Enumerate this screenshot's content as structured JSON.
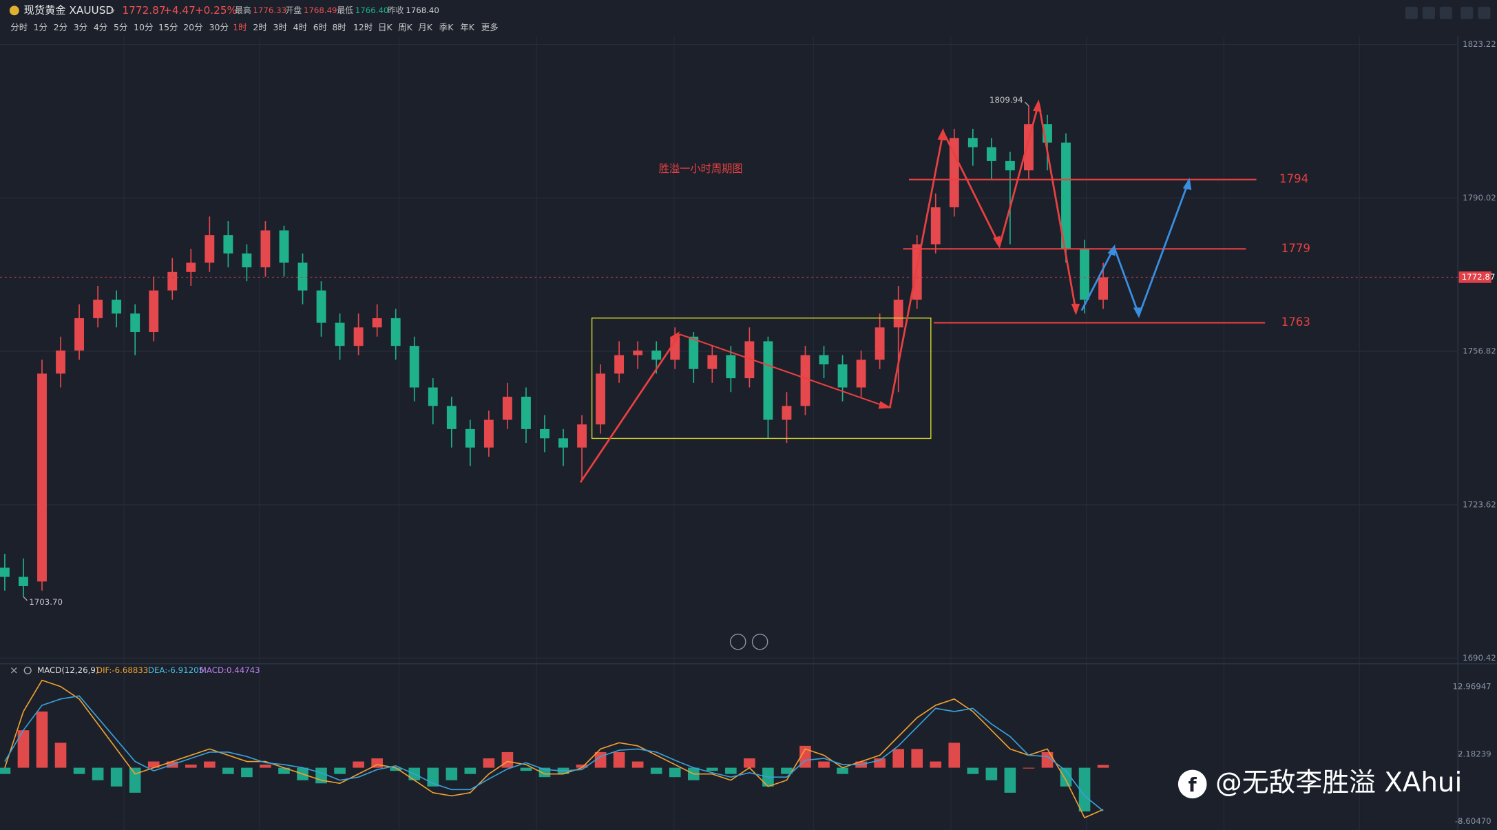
{
  "header": {
    "name": "现货黄金 XAUUSD",
    "price": "1772.87",
    "change": "+4.47",
    "change_pct": "+0.25%",
    "stats": [
      {
        "label": "最高",
        "value": "1776.33"
      },
      {
        "label": "开盘",
        "value": "1768.49"
      },
      {
        "label": "最低",
        "value": "1766.40"
      },
      {
        "label": "昨收",
        "value": "1768.40"
      }
    ]
  },
  "timeframes": [
    "分时",
    "1分",
    "2分",
    "3分",
    "4分",
    "5分",
    "10分",
    "15分",
    "20分",
    "30分",
    "1时",
    "2时",
    "3时",
    "4时",
    "6时",
    "8时",
    "12时",
    "日K",
    "周K",
    "月K",
    "季K",
    "年K",
    "更多"
  ],
  "active_timeframe_index": 10,
  "chart_data": [
    {
      "type": "candlestick",
      "title": "胜溢一小时周期图",
      "up_color": "#e5484d",
      "down_color": "#1fb28a",
      "ylim": [
        1689.4,
        1825.0
      ],
      "yticks": [
        1690.42,
        1723.62,
        1756.82,
        1790.02,
        1823.22
      ],
      "grid": true,
      "last_price": 1772.87,
      "levels": [
        1794,
        1779,
        1763
      ],
      "extremes": [
        {
          "value": 1809.94,
          "label": "1809.94"
        },
        {
          "value": 1703.7,
          "label": "1703.70"
        }
      ],
      "open": [
        1710,
        1708,
        1707,
        1752,
        1757,
        1764,
        1768,
        1765,
        1761,
        1770,
        1774,
        1776,
        1782,
        1778,
        1775,
        1783,
        1776,
        1770,
        1763,
        1758,
        1762,
        1764,
        1758,
        1749,
        1745,
        1740,
        1736,
        1742,
        1747,
        1740,
        1738,
        1736,
        1741,
        1752,
        1756,
        1757,
        1755,
        1760,
        1753,
        1756,
        1751,
        1759,
        1742,
        1745,
        1756,
        1754,
        1749,
        1755,
        1762,
        1768,
        1780,
        1788,
        1803,
        1801,
        1798,
        1796,
        1806,
        1802,
        1779,
        1768
      ],
      "high": [
        1713,
        1712,
        1755,
        1760,
        1767,
        1771,
        1770,
        1767,
        1773,
        1777,
        1779,
        1786,
        1785,
        1780,
        1785,
        1784,
        1778,
        1772,
        1765,
        1765,
        1767,
        1766,
        1760,
        1751,
        1747,
        1742,
        1744,
        1750,
        1749,
        1743,
        1740,
        1743,
        1754,
        1759,
        1759,
        1759,
        1762,
        1761,
        1758,
        1758,
        1762,
        1760,
        1748,
        1758,
        1758,
        1756,
        1757,
        1765,
        1771,
        1782,
        1791,
        1805,
        1805,
        1803,
        1800,
        1809.94,
        1808,
        1804,
        1781,
        1776
      ],
      "low": [
        1705,
        1703.7,
        1705,
        1749,
        1755,
        1762,
        1762,
        1756,
        1759,
        1768,
        1771,
        1774,
        1775,
        1772,
        1773,
        1773,
        1767,
        1760,
        1755,
        1756,
        1760,
        1755,
        1746,
        1741,
        1736,
        1732,
        1734,
        1740,
        1737,
        1735,
        1732,
        1729,
        1739,
        1750,
        1753,
        1752,
        1753,
        1750,
        1750,
        1748,
        1749,
        1738,
        1737,
        1743,
        1751,
        1746,
        1747,
        1753,
        1748,
        1766,
        1778,
        1786,
        1797,
        1794,
        1780,
        1794,
        1796,
        1776,
        1765,
        1766
      ],
      "close": [
        1708,
        1706,
        1752,
        1757,
        1764,
        1768,
        1765,
        1761,
        1770,
        1774,
        1776,
        1782,
        1778,
        1775,
        1783,
        1776,
        1770,
        1763,
        1758,
        1762,
        1764,
        1758,
        1749,
        1745,
        1740,
        1736,
        1742,
        1747,
        1740,
        1738,
        1736,
        1741,
        1752,
        1756,
        1757,
        1755,
        1760,
        1753,
        1756,
        1751,
        1759,
        1742,
        1745,
        1756,
        1754,
        1749,
        1755,
        1762,
        1768,
        1780,
        1788,
        1803,
        1801,
        1798,
        1796,
        1806,
        1802,
        1779,
        1768,
        1772.87
      ]
    },
    {
      "type": "macd",
      "title": "MACD(12,26,9)",
      "legend": [
        {
          "text": "DIF:-6.68833",
          "color": "#f0a030"
        },
        {
          "text": "DEA:-6.91205",
          "color": "#4ac0e0"
        },
        {
          "text": "MACD:0.44743",
          "color": "#c080f0"
        }
      ],
      "ylim": [
        -9.5,
        14.5
      ],
      "yticks": [
        12.96947,
        2.18239,
        {
          "value": -8.6047,
          "label": "-8.60470"
        }
      ],
      "up_color": "#e04a4a",
      "down_color": "#1fa58a",
      "series": [
        {
          "color": "#f0a030",
          "values": [
            0,
            9,
            14,
            13,
            11,
            7,
            3,
            -1,
            0,
            1,
            2,
            3,
            2,
            1,
            1,
            0,
            -1,
            -2,
            -2.5,
            -1,
            0.5,
            0,
            -2,
            -4,
            -4.5,
            -4,
            -1,
            1,
            0.5,
            -1,
            -1,
            0,
            3,
            4,
            3.5,
            2,
            0.5,
            -1,
            -1,
            -2,
            0,
            -3,
            -2,
            3,
            2,
            0,
            1,
            2,
            5,
            8,
            10,
            11,
            9,
            6,
            3,
            2,
            3,
            -2,
            -8,
            -6.68833
          ]
        },
        {
          "color": "#3aa0d8",
          "values": [
            1,
            6,
            10,
            11,
            11.5,
            8,
            4.5,
            1,
            -0.5,
            0.5,
            1.5,
            2.5,
            2.5,
            1.8,
            0.8,
            0.5,
            0,
            -0.8,
            -2,
            -1.5,
            -0.3,
            0.3,
            -1,
            -2.5,
            -3.5,
            -3.5,
            -1.8,
            -0.2,
            0.8,
            -0.3,
            -0.5,
            -0.3,
            1.8,
            2.8,
            3,
            2.5,
            1.2,
            0,
            -0.8,
            -1.5,
            -0.8,
            -1.5,
            -1.5,
            1.2,
            1.5,
            0.5,
            0.5,
            1.2,
            3.5,
            6.5,
            9.5,
            9,
            9.5,
            7,
            5,
            2,
            1.8,
            -0.5,
            -4.5,
            -6.91205
          ]
        }
      ],
      "histogram": [
        -1,
        6,
        9,
        4,
        -1,
        -2,
        -3,
        -4,
        1,
        1,
        0.5,
        1,
        -1,
        -1.5,
        0.5,
        -1,
        -2,
        -2.5,
        -1,
        1,
        1.5,
        -0.5,
        -2,
        -3,
        -2,
        -1,
        1.5,
        2.5,
        -0.5,
        -1.5,
        -1,
        0.5,
        2.5,
        2.5,
        1,
        -1,
        -1.5,
        -2,
        -0.5,
        -1,
        1.5,
        -3,
        -1,
        3.5,
        1,
        -1,
        1,
        1.5,
        3,
        3,
        1,
        4,
        -1,
        -2,
        -4,
        0,
        2.5,
        -3,
        -7,
        0.44743
      ]
    }
  ],
  "watermark": "@无敌李胜溢 XAhui"
}
